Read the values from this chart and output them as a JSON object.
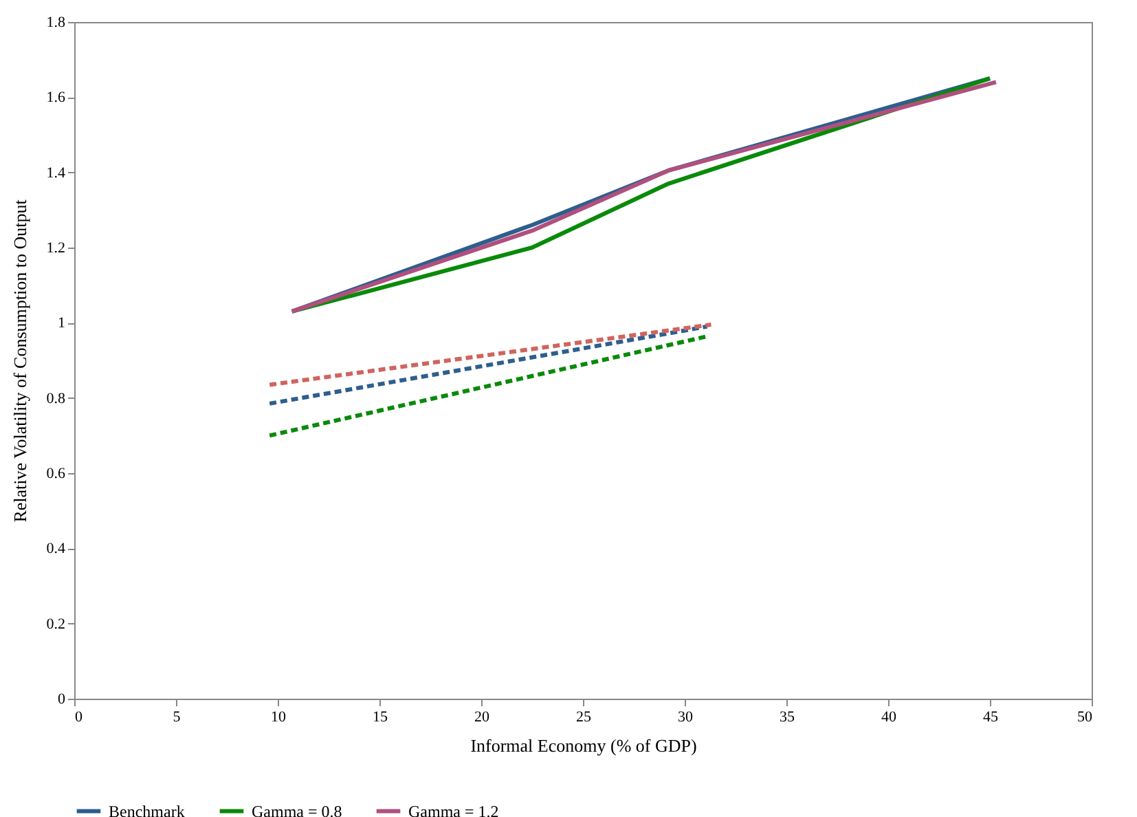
{
  "chart_data": {
    "type": "line",
    "xlabel": "Informal Economy (% of GDP)",
    "ylabel": "Relative Volatility of Consumption to Output",
    "xlim": [
      0,
      50
    ],
    "xticks": [
      0,
      5,
      10,
      15,
      20,
      25,
      30,
      35,
      40,
      45,
      50
    ],
    "ylim": [
      0,
      1.8
    ],
    "yticks": [
      0,
      0.2,
      0.4,
      0.6,
      0.8,
      1,
      1.2,
      1.4,
      1.6,
      1.8
    ],
    "grid": false,
    "legend": "bottom",
    "marker": "none",
    "series": [
      {
        "name": "Benchmark",
        "color": "#2e5e8e",
        "x": [
          10.7,
          22.5,
          29.2,
          45
        ],
        "values": [
          1.03,
          1.26,
          1.405,
          1.65
        ],
        "line_style": "solid"
      },
      {
        "name": "Gamma = 0.8",
        "color": "#0a8a0a",
        "x": [
          10.7,
          22.5,
          29.2,
          45
        ],
        "values": [
          1.03,
          1.2,
          1.37,
          1.65
        ],
        "line_style": "solid"
      },
      {
        "name": "Gamma = 1.2",
        "color": "#b0507e",
        "x": [
          10.7,
          22.5,
          29.2,
          45.3
        ],
        "values": [
          1.03,
          1.245,
          1.405,
          1.64
        ],
        "line_style": "solid"
      },
      {
        "color": "#2e5e8e",
        "x": [
          9.6,
          31.1
        ],
        "values": [
          0.785,
          0.99
        ],
        "line_style": "dashed"
      },
      {
        "color": "#d0645e",
        "x": [
          9.6,
          31.3
        ],
        "values": [
          0.835,
          0.995
        ],
        "line_style": "dashed"
      },
      {
        "color": "#0a8a0a",
        "x": [
          9.6,
          31.2
        ],
        "values": [
          0.7,
          0.965
        ],
        "line_style": "dashed"
      }
    ]
  }
}
